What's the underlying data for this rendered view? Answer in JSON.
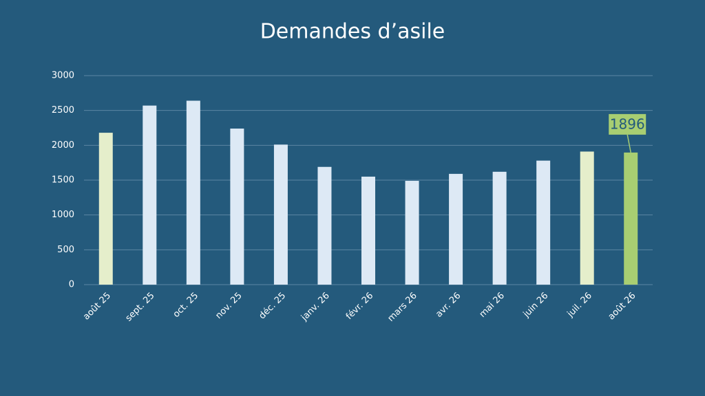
{
  "chart_data": {
    "type": "bar",
    "title": "Demandes d’asile",
    "categories": [
      "août 25",
      "sept. 25",
      "oct. 25",
      "nov. 25",
      "déc. 25",
      "janv. 26",
      "févr. 26",
      "mars 26",
      "avr. 26",
      "mai 26",
      "juin 26",
      "juil. 26",
      "août 26"
    ],
    "values": [
      2180,
      2570,
      2640,
      2240,
      2010,
      1690,
      1550,
      1490,
      1590,
      1620,
      1780,
      1910,
      1896
    ],
    "colors": [
      "#e5eecb",
      "#dde9f5",
      "#dde9f5",
      "#dde9f5",
      "#dde9f5",
      "#dde9f5",
      "#dde9f5",
      "#dde9f5",
      "#dde9f5",
      "#dde9f5",
      "#dde9f5",
      "#e5eecb",
      "#a8ce72"
    ],
    "ylim": [
      0,
      3000
    ],
    "yticks": [
      0,
      500,
      1000,
      1500,
      2000,
      2500,
      3000
    ],
    "grid": true
  }
}
